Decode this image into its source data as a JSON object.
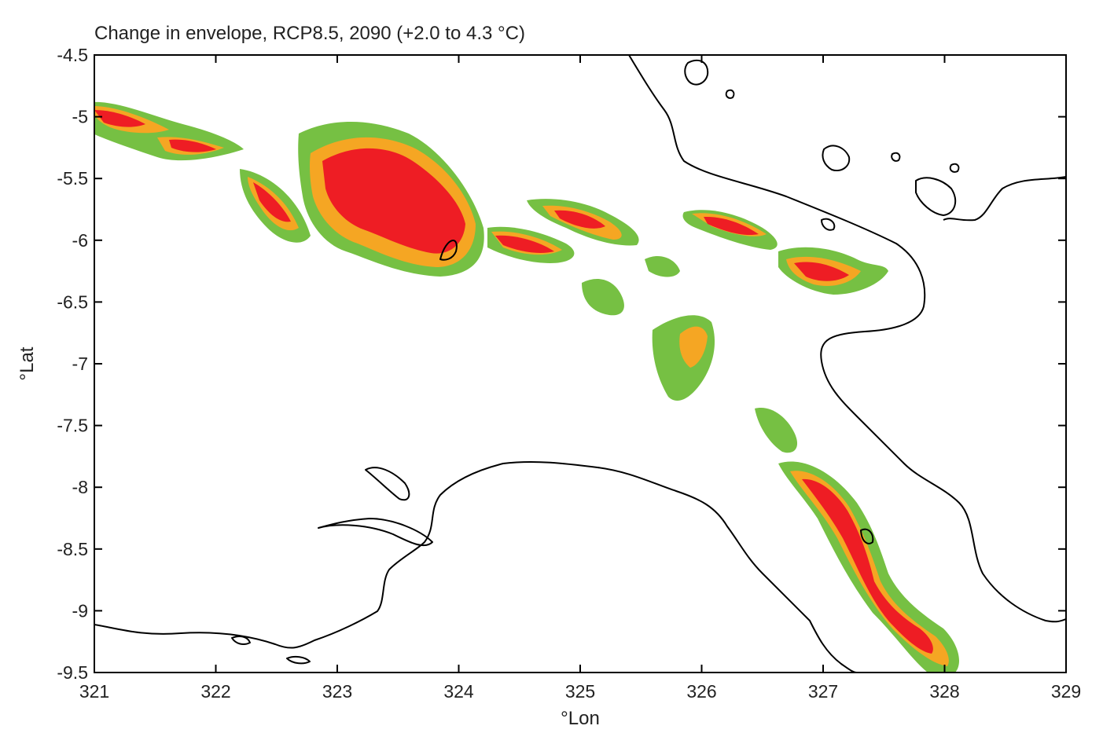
{
  "title": "Change in envelope, RCP8.5, 2090 (+2.0 to 4.3 °C)",
  "x_axis": {
    "label": "°Lon",
    "range": [
      321,
      329
    ],
    "ticks": [
      "321",
      "322",
      "323",
      "324",
      "325",
      "326",
      "327",
      "328",
      "329"
    ]
  },
  "y_axis": {
    "label": "°Lat",
    "range": [
      -9.5,
      -4.5
    ],
    "ticks": [
      "-4.5",
      "-5",
      "-5.5",
      "-6",
      "-6.5",
      "-7",
      "-7.5",
      "-8",
      "-8.5",
      "-9",
      "-9.5"
    ]
  },
  "colors": {
    "gain": "#76c043",
    "moderate": "#f5a623",
    "high": "#ee1d24",
    "outline": "#000000"
  }
}
